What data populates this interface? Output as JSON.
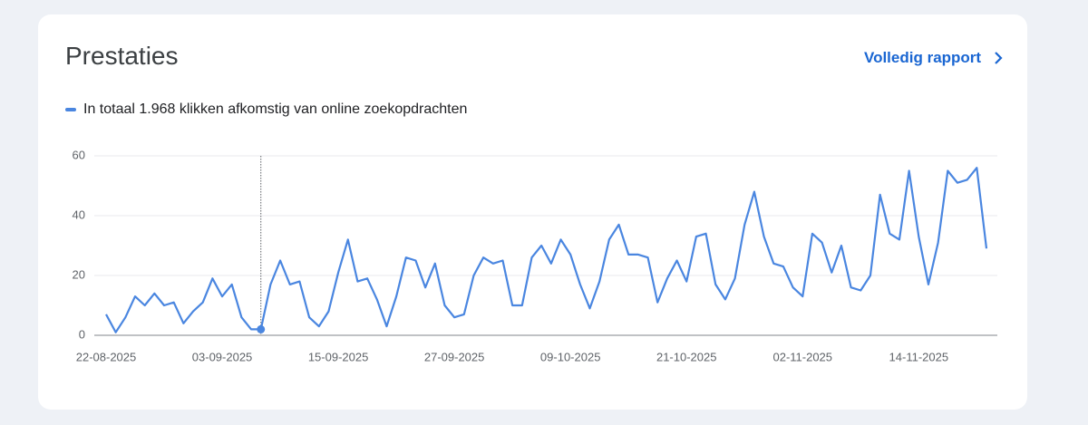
{
  "header": {
    "title": "Prestaties",
    "link": "Volledig rapport"
  },
  "chart_data": {
    "type": "line",
    "x": [
      "22-08-2025",
      "23-08-2025",
      "24-08-2025",
      "25-08-2025",
      "26-08-2025",
      "27-08-2025",
      "28-08-2025",
      "29-08-2025",
      "30-08-2025",
      "31-08-2025",
      "01-09-2025",
      "02-09-2025",
      "03-09-2025",
      "04-09-2025",
      "05-09-2025",
      "06-09-2025",
      "07-09-2025",
      "08-09-2025",
      "09-09-2025",
      "10-09-2025",
      "11-09-2025",
      "12-09-2025",
      "13-09-2025",
      "14-09-2025",
      "15-09-2025",
      "16-09-2025",
      "17-09-2025",
      "18-09-2025",
      "19-09-2025",
      "20-09-2025",
      "21-09-2025",
      "22-09-2025",
      "23-09-2025",
      "24-09-2025",
      "25-09-2025",
      "26-09-2025",
      "27-09-2025",
      "28-09-2025",
      "29-09-2025",
      "30-09-2025",
      "01-10-2025",
      "02-10-2025",
      "03-10-2025",
      "04-10-2025",
      "05-10-2025",
      "06-10-2025",
      "07-10-2025",
      "08-10-2025",
      "09-10-2025",
      "10-10-2025",
      "11-10-2025",
      "12-10-2025",
      "13-10-2025",
      "14-10-2025",
      "15-10-2025",
      "16-10-2025",
      "17-10-2025",
      "18-10-2025",
      "19-10-2025",
      "20-10-2025",
      "21-10-2025",
      "22-10-2025",
      "23-10-2025",
      "24-10-2025",
      "25-10-2025",
      "26-10-2025",
      "27-10-2025",
      "28-10-2025",
      "29-10-2025",
      "30-10-2025",
      "31-10-2025",
      "01-11-2025",
      "02-11-2025",
      "03-11-2025",
      "04-11-2025",
      "05-11-2025",
      "06-11-2025",
      "07-11-2025",
      "08-11-2025",
      "09-11-2025",
      "10-11-2025",
      "11-11-2025",
      "12-11-2025",
      "13-11-2025",
      "14-11-2025",
      "15-11-2025",
      "16-11-2025",
      "17-11-2025",
      "18-11-2025",
      "19-11-2025",
      "20-11-2025",
      "21-11-2025"
    ],
    "series": [
      {
        "name": "In totaal 1.968 klikken afkomstig van online zoekopdrachten",
        "color": "#4a86e0",
        "values": [
          7,
          1,
          6,
          13,
          10,
          14,
          10,
          11,
          4,
          8,
          11,
          19,
          13,
          17,
          6,
          2,
          2,
          17,
          25,
          17,
          18,
          6,
          3,
          8,
          21,
          32,
          18,
          19,
          12,
          3,
          13,
          26,
          25,
          16,
          24,
          10,
          6,
          7,
          20,
          26,
          24,
          25,
          10,
          10,
          26,
          30,
          24,
          32,
          27,
          17,
          9,
          18,
          32,
          37,
          27,
          27,
          26,
          11,
          19,
          25,
          18,
          33,
          34,
          17,
          12,
          19,
          37,
          48,
          33,
          24,
          23,
          16,
          13,
          34,
          31,
          21,
          30,
          16,
          15,
          20,
          47,
          34,
          32,
          55,
          33,
          17,
          31,
          55,
          51,
          52,
          56,
          29
        ]
      }
    ],
    "xticks": [
      "22-08-2025",
      "03-09-2025",
      "15-09-2025",
      "27-09-2025",
      "09-10-2025",
      "21-10-2025",
      "02-11-2025",
      "14-11-2025"
    ],
    "ylim": [
      0,
      60
    ],
    "yticks": [
      0,
      20,
      40,
      60
    ],
    "grid": true,
    "highlight_x": "07-09-2025"
  }
}
